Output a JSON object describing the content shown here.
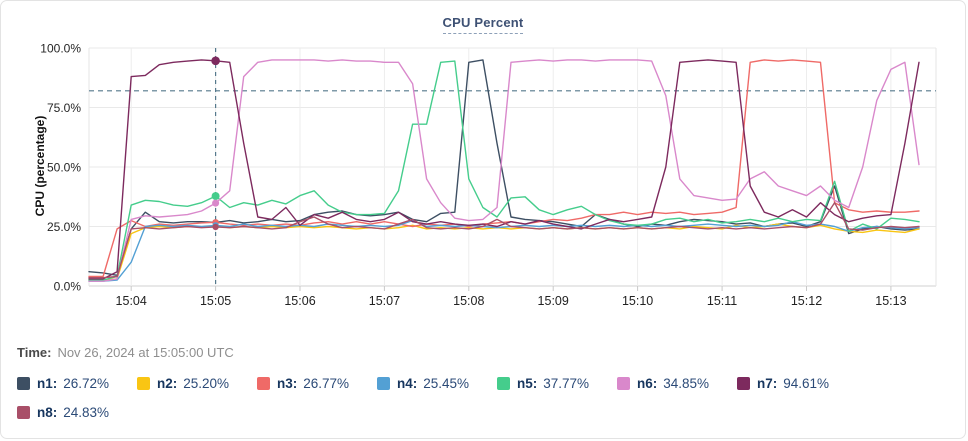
{
  "header": {
    "title": "CPU Percent"
  },
  "axes": {
    "y_title": "CPU (percentage)",
    "y_tick_values": [
      0,
      25,
      50,
      75,
      100
    ],
    "y_tick_labels": [
      "0.0%",
      "25.0%",
      "50.0%",
      "75.0%",
      "100.0%"
    ],
    "x_tick_labels": [
      "15:04",
      "15:05",
      "15:06",
      "15:07",
      "15:08",
      "15:09",
      "15:10",
      "15:11",
      "15:12",
      "15:13"
    ]
  },
  "tooltip": {
    "time_label": "Time:",
    "time_value": "Nov 26, 2024 at 15:05:00 UTC"
  },
  "legend": {
    "items": [
      {
        "name": "n1",
        "label": "n1:",
        "value": "26.72%",
        "color": "#3d4f63"
      },
      {
        "name": "n2",
        "label": "n2:",
        "value": "25.20%",
        "color": "#f9c513"
      },
      {
        "name": "n3",
        "label": "n3:",
        "value": "26.77%",
        "color": "#ef6a67"
      },
      {
        "name": "n4",
        "label": "n4:",
        "value": "25.45%",
        "color": "#53a0d4"
      },
      {
        "name": "n5",
        "label": "n5:",
        "value": "37.77%",
        "color": "#45cd8c"
      },
      {
        "name": "n6",
        "label": "n6:",
        "value": "34.85%",
        "color": "#d988cb"
      },
      {
        "name": "n7",
        "label": "n7:",
        "value": "94.61%",
        "color": "#7d2a5e"
      },
      {
        "name": "n8",
        "label": "n8:",
        "value": "24.83%",
        "color": "#a94f68"
      }
    ]
  },
  "chart_data": {
    "type": "line",
    "title": "CPU Percent",
    "ylabel": "CPU (percentage)",
    "ylim": [
      0,
      100
    ],
    "grid": true,
    "legend_position": "bottom",
    "x_start_time": "15:03:30",
    "x_end_time": "15:13:20",
    "x_step_seconds": 10,
    "x_minute_tick_labels": [
      "15:04",
      "15:05",
      "15:06",
      "15:07",
      "15:08",
      "15:09",
      "15:10",
      "15:11",
      "15:12",
      "15:13"
    ],
    "x_minute_tick_indices": [
      3,
      9,
      15,
      21,
      27,
      33,
      39,
      45,
      51,
      57
    ],
    "threshold_line_percent": 82,
    "crosshair_time": "15:05:00",
    "crosshair_index": 9,
    "series": [
      {
        "name": "n1",
        "color": "#3d4f63",
        "crosshair_value": 26.72,
        "values": [
          6,
          5.5,
          4.5,
          24,
          31,
          27,
          26.5,
          27,
          27,
          26.72,
          27.5,
          26.5,
          27,
          28,
          27,
          27.5,
          30,
          31,
          31.5,
          30,
          29.5,
          30,
          31,
          28,
          27,
          30.5,
          31,
          94,
          95,
          60,
          29,
          28,
          27.5,
          27,
          26,
          25,
          30,
          28,
          26,
          25,
          26,
          25.5,
          27,
          28,
          27.5,
          27,
          26,
          26.5,
          25,
          26,
          26.5,
          25,
          27,
          42,
          22,
          24,
          25,
          24,
          23.5,
          24
        ]
      },
      {
        "name": "n2",
        "color": "#f9c513",
        "crosshair_value": 25.2,
        "values": [
          2.5,
          2.5,
          3,
          22,
          24.5,
          25,
          24.5,
          25,
          24.8,
          25.2,
          24.5,
          25,
          24.5,
          25,
          24.5,
          25,
          24.5,
          25,
          24.5,
          24,
          24.5,
          24,
          24.5,
          25.5,
          24,
          24.5,
          24,
          24.5,
          24,
          24.5,
          24,
          24.5,
          24,
          24.5,
          24,
          24.5,
          24,
          24.5,
          24,
          24.5,
          24,
          24.5,
          24,
          25,
          24.5,
          24,
          25.5,
          24.5,
          25,
          26,
          25,
          24.5,
          25.5,
          24,
          23,
          22.5,
          23.5,
          23,
          22.5,
          24
        ]
      },
      {
        "name": "n3",
        "color": "#ef6a67",
        "crosshair_value": 26.77,
        "values": [
          4,
          4,
          24,
          27.5,
          25,
          26,
          25.5,
          26,
          26.5,
          26.77,
          26,
          25.5,
          26,
          25.5,
          26,
          25.5,
          26.5,
          27,
          26,
          27,
          26,
          27,
          26,
          25,
          26,
          25.5,
          26,
          25,
          26,
          26.5,
          27,
          26,
          27,
          28,
          27.5,
          28.5,
          30,
          30,
          31,
          30,
          31,
          30.5,
          31,
          30,
          30.5,
          31,
          33,
          94,
          95,
          94.5,
          95,
          94.5,
          94,
          35,
          32,
          31,
          31.5,
          31,
          31,
          31.5
        ]
      },
      {
        "name": "n4",
        "color": "#53a0d4",
        "crosshair_value": 25.45,
        "values": [
          2,
          2,
          2.5,
          10,
          25,
          25.5,
          25,
          25.5,
          25,
          25.45,
          25,
          26,
          25,
          25.5,
          25,
          25.5,
          25,
          26,
          25.5,
          25,
          25.5,
          25,
          25.5,
          27.5,
          25,
          25.5,
          25,
          25.5,
          25,
          24.5,
          25,
          25.5,
          25,
          25.5,
          25,
          25.5,
          25,
          25.5,
          25,
          25.5,
          25,
          25.5,
          25,
          25.5,
          26,
          25.5,
          25,
          25.5,
          25,
          25.5,
          27,
          25.5,
          26,
          25,
          23,
          24.5,
          25,
          24.5,
          24,
          24.5
        ]
      },
      {
        "name": "n5",
        "color": "#45cd8c",
        "crosshair_value": 37.77,
        "values": [
          2.5,
          2.5,
          4,
          34,
          36,
          35.5,
          34,
          33.5,
          35,
          37.77,
          33,
          35,
          34,
          36,
          34.5,
          38,
          40,
          34,
          31,
          30,
          30,
          30.5,
          40,
          68,
          68,
          94,
          94.5,
          45,
          33,
          29,
          37,
          37.5,
          32,
          30,
          32,
          33.5,
          30,
          27.5,
          26,
          25.5,
          26,
          28,
          28.5,
          27,
          28,
          26.5,
          27,
          28,
          27,
          28.5,
          27,
          28,
          27.5,
          44,
          23,
          26,
          24,
          28.5,
          28,
          27
        ]
      },
      {
        "name": "n6",
        "color": "#d988cb",
        "crosshair_value": 34.85,
        "values": [
          2,
          2,
          3,
          28,
          29.5,
          29,
          29.5,
          30,
          31.5,
          34.85,
          40,
          88,
          94,
          95,
          95,
          95,
          95,
          94.5,
          95,
          94.5,
          94.5,
          94,
          94,
          85,
          45,
          35,
          28.5,
          27.5,
          28,
          33,
          94,
          94.5,
          95,
          94.5,
          95,
          95,
          94.5,
          95,
          95,
          95,
          94.5,
          80,
          45,
          38,
          37,
          36,
          36.5,
          45,
          48,
          42,
          40,
          38,
          42,
          36,
          33,
          50,
          78,
          91,
          94,
          51
        ]
      },
      {
        "name": "n7",
        "color": "#7d2a5e",
        "crosshair_value": 94.61,
        "values": [
          3,
          3,
          6,
          88,
          88.5,
          93,
          94,
          94.5,
          95,
          94.61,
          94,
          60,
          29,
          28,
          33,
          25.5,
          30,
          28.5,
          31,
          28,
          27,
          28,
          31,
          27,
          26,
          27,
          26,
          25.5,
          26,
          25,
          27,
          26,
          27.5,
          26,
          25,
          24,
          26,
          28,
          27,
          28,
          29,
          50,
          94,
          94.5,
          95,
          94.5,
          94,
          42,
          31,
          29,
          32,
          29,
          35,
          30,
          27,
          28.5,
          29.5,
          30,
          60,
          94
        ]
      },
      {
        "name": "n8",
        "color": "#a94f68",
        "crosshair_value": 24.83,
        "values": [
          3.5,
          3.5,
          4,
          24,
          24.5,
          24,
          24.5,
          25,
          24.5,
          24.83,
          24.5,
          25,
          24.5,
          24,
          24.5,
          27,
          29,
          26,
          24.5,
          25,
          24.5,
          24,
          26,
          28,
          24.5,
          24,
          24.5,
          24,
          25,
          28,
          25,
          24.5,
          24,
          24.5,
          24,
          24.5,
          24,
          24.5,
          24,
          24.5,
          24,
          24.5,
          25,
          24.5,
          24,
          24.5,
          24,
          24.5,
          24,
          24.5,
          25,
          24.5,
          26,
          35,
          24,
          23.5,
          24.5,
          25,
          24.5,
          25
        ]
      }
    ]
  }
}
